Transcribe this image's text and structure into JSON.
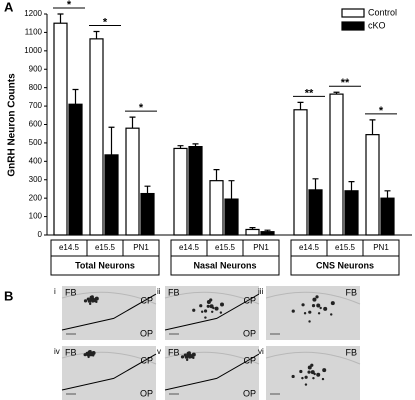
{
  "chart_data": {
    "type": "bar",
    "panel_label": "A",
    "y_label": "GnRH Neuron Counts",
    "categories": [
      "e14.5",
      "e15.5",
      "PN1",
      "e14.5",
      "e15.5",
      "PN1",
      "e14.5",
      "e15.5",
      "PN1"
    ],
    "groups": [
      "Total Neurons",
      "Nasal Neurons",
      "CNS Neurons"
    ],
    "series": [
      {
        "name": "Control",
        "color": "#ffffff",
        "values": [
          1150,
          1065,
          580,
          470,
          295,
          30,
          680,
          765,
          545
        ],
        "errors": [
          50,
          40,
          60,
          15,
          60,
          10,
          40,
          10,
          80
        ]
      },
      {
        "name": "cKO",
        "color": "#000000",
        "values": [
          710,
          435,
          225,
          480,
          195,
          18,
          245,
          240,
          200
        ],
        "errors": [
          80,
          150,
          40,
          15,
          100,
          8,
          60,
          50,
          40
        ]
      }
    ],
    "significance": [
      "*",
      "*",
      "*",
      null,
      null,
      null,
      "**",
      "**",
      "*"
    ],
    "ylim": [
      0,
      1200
    ],
    "yticks": [
      0,
      100,
      200,
      300,
      400,
      500,
      600,
      700,
      800,
      900,
      1000,
      1100,
      1200
    ],
    "legend": "top-right"
  },
  "panel_b": {
    "label": "B",
    "images": [
      {
        "numeral": "i",
        "labels": [
          "FB",
          "CP",
          "OP"
        ]
      },
      {
        "numeral": "ii",
        "labels": [
          "FB",
          "CP",
          "OP"
        ]
      },
      {
        "numeral": "iii",
        "labels": [
          "FB"
        ]
      },
      {
        "numeral": "iv",
        "labels": [
          "FB",
          "CP",
          "OP"
        ]
      },
      {
        "numeral": "v",
        "labels": [
          "FB",
          "CP",
          "OP"
        ]
      },
      {
        "numeral": "vi",
        "labels": [
          "FB"
        ]
      }
    ]
  }
}
